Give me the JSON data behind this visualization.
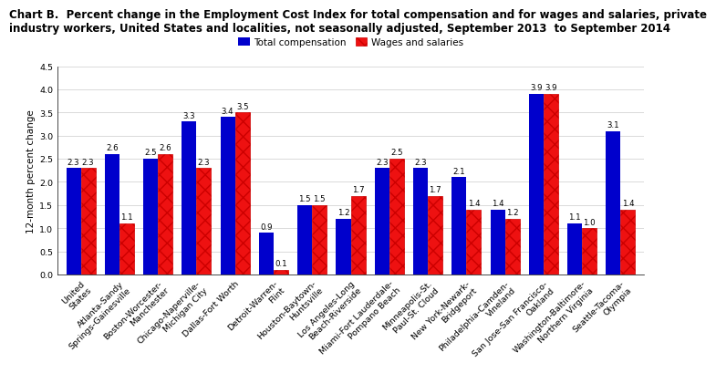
{
  "title_line1": "Chart B.  Percent change in the Employment Cost Index for total compensation and for wages and salaries, private",
  "title_line2": "industry workers, United States and localities, not seasonally adjusted, September 2013  to September 2014",
  "categories": [
    "United\nStates",
    "Atlanta-Sandy\nSprings-Gainesville",
    "Boston-Worcester-\nManchester",
    "Chicago-Naperville-\nMichigan City",
    "Dallas-Fort Worth",
    "Detroit-Warren-\nFlint",
    "Houston-Baytown-\nHuntsville",
    "Los Angeles-Long\nBeach-Riverside",
    "Miami-Fort Lauderdale-\nPompano Beach",
    "Minneapolis-St.\nPaul-St. Cloud",
    "New York-Newark-\nBridgeport",
    "Philadelphia-Camden-\nVineland",
    "San Jose-San Francisco-\nOakland",
    "Washington-Baltimore-\nNorthern Virginia",
    "Seattle-Tacoma-\nOlympia"
  ],
  "total_compensation": [
    2.3,
    2.6,
    2.5,
    3.3,
    3.4,
    0.9,
    1.5,
    1.2,
    2.3,
    2.3,
    2.1,
    1.4,
    3.9,
    1.1,
    3.1
  ],
  "wages_salaries": [
    2.3,
    1.1,
    2.6,
    2.3,
    3.5,
    0.1,
    1.5,
    1.7,
    2.5,
    1.7,
    1.4,
    1.2,
    3.9,
    1.0,
    1.4
  ],
  "total_comp_color": "#0000CC",
  "ylabel": "12-month percent change",
  "ylim": [
    0.0,
    4.5
  ],
  "yticks": [
    0.0,
    0.5,
    1.0,
    1.5,
    2.0,
    2.5,
    3.0,
    3.5,
    4.0,
    4.5
  ],
  "legend_labels": [
    "Total compensation",
    "Wages and salaries"
  ],
  "bar_width": 0.38,
  "title_fontsize": 8.5,
  "axis_fontsize": 7.5,
  "tick_fontsize": 6.8,
  "label_fontsize": 6.2
}
